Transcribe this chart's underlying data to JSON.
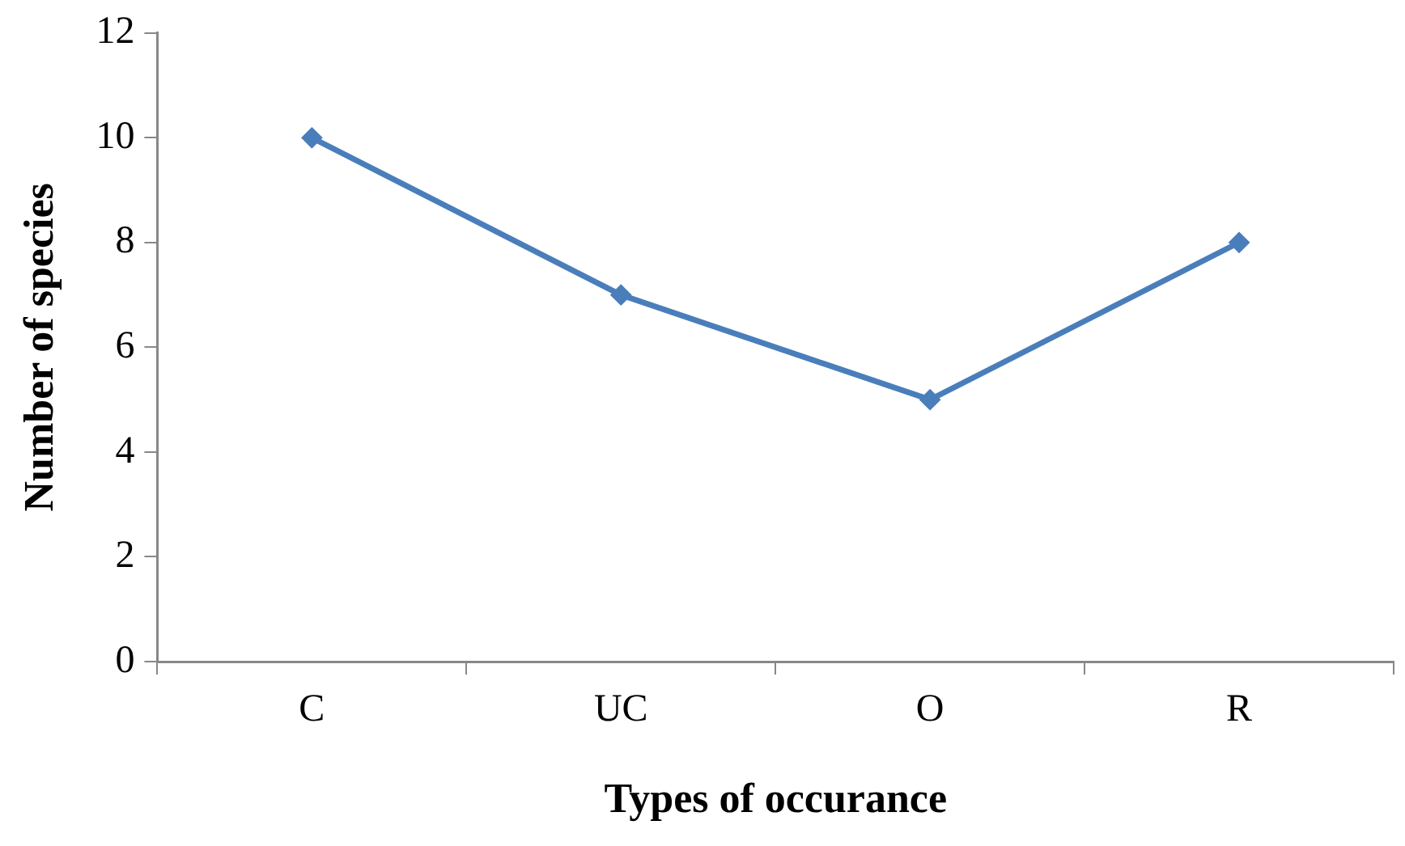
{
  "chart_data": {
    "type": "line",
    "xlabel": "Types of occurance",
    "ylabel": "Number of species",
    "categories": [
      "C",
      "UC",
      "O",
      "R"
    ],
    "series": [
      {
        "color": "#4a7ebb",
        "values": [
          10,
          7,
          5,
          8
        ]
      }
    ],
    "ylim": [
      0,
      12
    ],
    "yticks": [
      0,
      2,
      4,
      6,
      8,
      10,
      12
    ],
    "grid": false,
    "legend": false,
    "marker": "diamond",
    "line_style": "solid"
  }
}
